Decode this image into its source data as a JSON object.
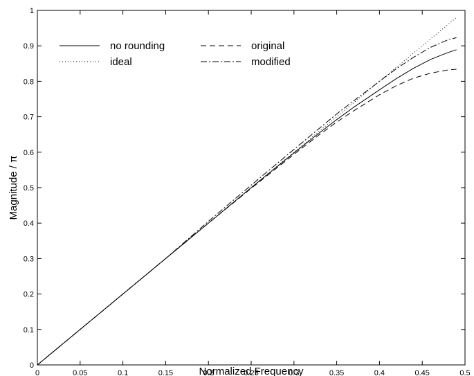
{
  "chart_data": {
    "type": "line",
    "title": "",
    "xlabel": "Normalized Frequency",
    "ylabel": "Magnitude / π",
    "xlim": [
      0,
      0.5
    ],
    "ylim": [
      0,
      1
    ],
    "xticks": [
      0,
      0.05,
      0.1,
      0.15,
      0.2,
      0.25,
      0.3,
      0.35,
      0.4,
      0.45,
      0.5
    ],
    "xtick_labels": [
      "0",
      "0.05",
      "0.1",
      "0.15",
      "0.2",
      "0.25",
      "0.3",
      "0.35",
      "0.4",
      "0.45",
      "0.5"
    ],
    "yticks": [
      0,
      0.1,
      0.2,
      0.3,
      0.4,
      0.5,
      0.6,
      0.7,
      0.8,
      0.9,
      1
    ],
    "ytick_labels": [
      "0",
      "0.1",
      "0.2",
      "0.3",
      "0.4",
      "0.5",
      "0.6",
      "0.7",
      "0.8",
      "0.9",
      "1"
    ],
    "grid": false,
    "legend_position": "top-left",
    "series": [
      {
        "name": "no rounding",
        "style": "solid",
        "x": [
          0,
          0.05,
          0.1,
          0.15,
          0.2,
          0.25,
          0.3,
          0.33,
          0.35,
          0.37,
          0.4,
          0.42,
          0.44,
          0.46,
          0.48,
          0.49
        ],
        "y": [
          0,
          0.1,
          0.2,
          0.3,
          0.4,
          0.5,
          0.598,
          0.655,
          0.692,
          0.727,
          0.776,
          0.808,
          0.837,
          0.862,
          0.881,
          0.889
        ]
      },
      {
        "name": "ideal",
        "style": "dotted",
        "x": [
          0,
          0.1,
          0.2,
          0.3,
          0.4,
          0.45,
          0.49
        ],
        "y": [
          0,
          0.2,
          0.4,
          0.6,
          0.8,
          0.9,
          0.98
        ]
      },
      {
        "name": "original",
        "style": "dashed",
        "x": [
          0,
          0.05,
          0.1,
          0.15,
          0.2,
          0.25,
          0.3,
          0.33,
          0.35,
          0.37,
          0.4,
          0.42,
          0.44,
          0.46,
          0.48,
          0.49
        ],
        "y": [
          0,
          0.1,
          0.2,
          0.3,
          0.4,
          0.498,
          0.594,
          0.65,
          0.685,
          0.717,
          0.762,
          0.788,
          0.809,
          0.823,
          0.832,
          0.834
        ]
      },
      {
        "name": "modified",
        "style": "dashdot",
        "x": [
          0,
          0.05,
          0.1,
          0.15,
          0.2,
          0.25,
          0.3,
          0.33,
          0.35,
          0.37,
          0.4,
          0.42,
          0.44,
          0.46,
          0.48,
          0.49
        ],
        "y": [
          0,
          0.1,
          0.2,
          0.3,
          0.405,
          0.507,
          0.608,
          0.668,
          0.708,
          0.745,
          0.8,
          0.836,
          0.868,
          0.896,
          0.917,
          0.923
        ]
      }
    ]
  }
}
